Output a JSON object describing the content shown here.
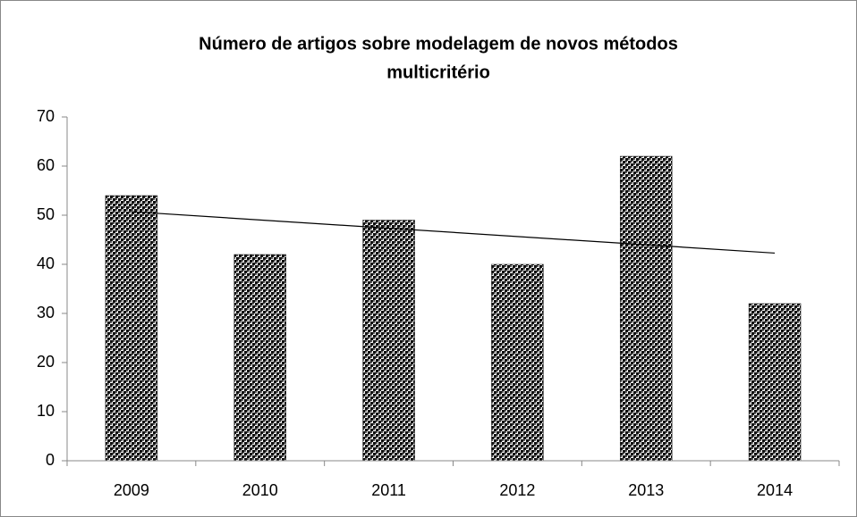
{
  "chart_data": {
    "type": "bar",
    "title": [
      "Número de artigos sobre modelagem de novos métodos",
      "multicritério"
    ],
    "categories": [
      "2009",
      "2010",
      "2011",
      "2012",
      "2013",
      "2014"
    ],
    "values": [
      54,
      42,
      49,
      40,
      62,
      32
    ],
    "color": "#222222",
    "trendline": "linear",
    "ylim": [
      0,
      70
    ],
    "yticks": [
      0,
      10,
      20,
      30,
      40,
      50,
      60,
      70
    ],
    "grid": false
  }
}
